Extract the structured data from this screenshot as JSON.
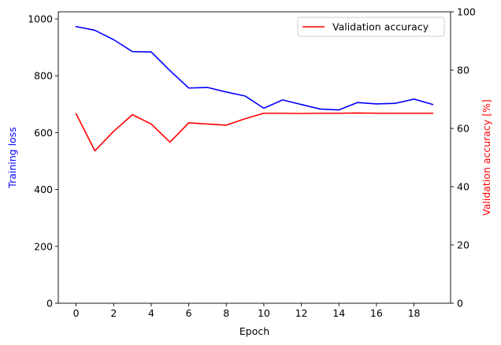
{
  "chart_data": {
    "type": "line",
    "xlabel": "Epoch",
    "xlim": [
      -0.95,
      19.95
    ],
    "x_ticks": [
      0,
      2,
      4,
      6,
      8,
      10,
      12,
      14,
      16,
      18
    ],
    "x": [
      0,
      1,
      2,
      3,
      4,
      5,
      6,
      7,
      8,
      9,
      10,
      11,
      12,
      13,
      14,
      15,
      16,
      17,
      18,
      19
    ],
    "left_axis": {
      "label": "Training loss",
      "color": "#0000ff",
      "ylim": [
        0,
        1025
      ],
      "ticks": [
        0,
        200,
        400,
        600,
        800,
        1000
      ]
    },
    "right_axis": {
      "label": "Validation accuracy [%]",
      "color": "#ff0000",
      "ylim": [
        0,
        100
      ],
      "ticks": [
        0,
        20,
        40,
        60,
        80,
        100
      ]
    },
    "series": [
      {
        "axis": "left",
        "color": "#0000ff",
        "values": [
          973,
          960,
          927,
          885,
          884,
          818,
          757,
          759,
          743,
          729,
          686,
          715,
          699,
          683,
          680,
          706,
          701,
          703,
          718,
          699
        ]
      },
      {
        "name": "Validation accuracy",
        "axis": "right",
        "color": "#ff0000",
        "values": [
          65.0,
          52.3,
          59.0,
          64.7,
          61.5,
          55.3,
          61.9,
          61.5,
          61.1,
          63.3,
          65.2,
          65.2,
          65.1,
          65.2,
          65.2,
          65.3,
          65.2,
          65.2,
          65.2,
          65.2
        ]
      }
    ],
    "legend": {
      "placement": "top-right"
    }
  }
}
